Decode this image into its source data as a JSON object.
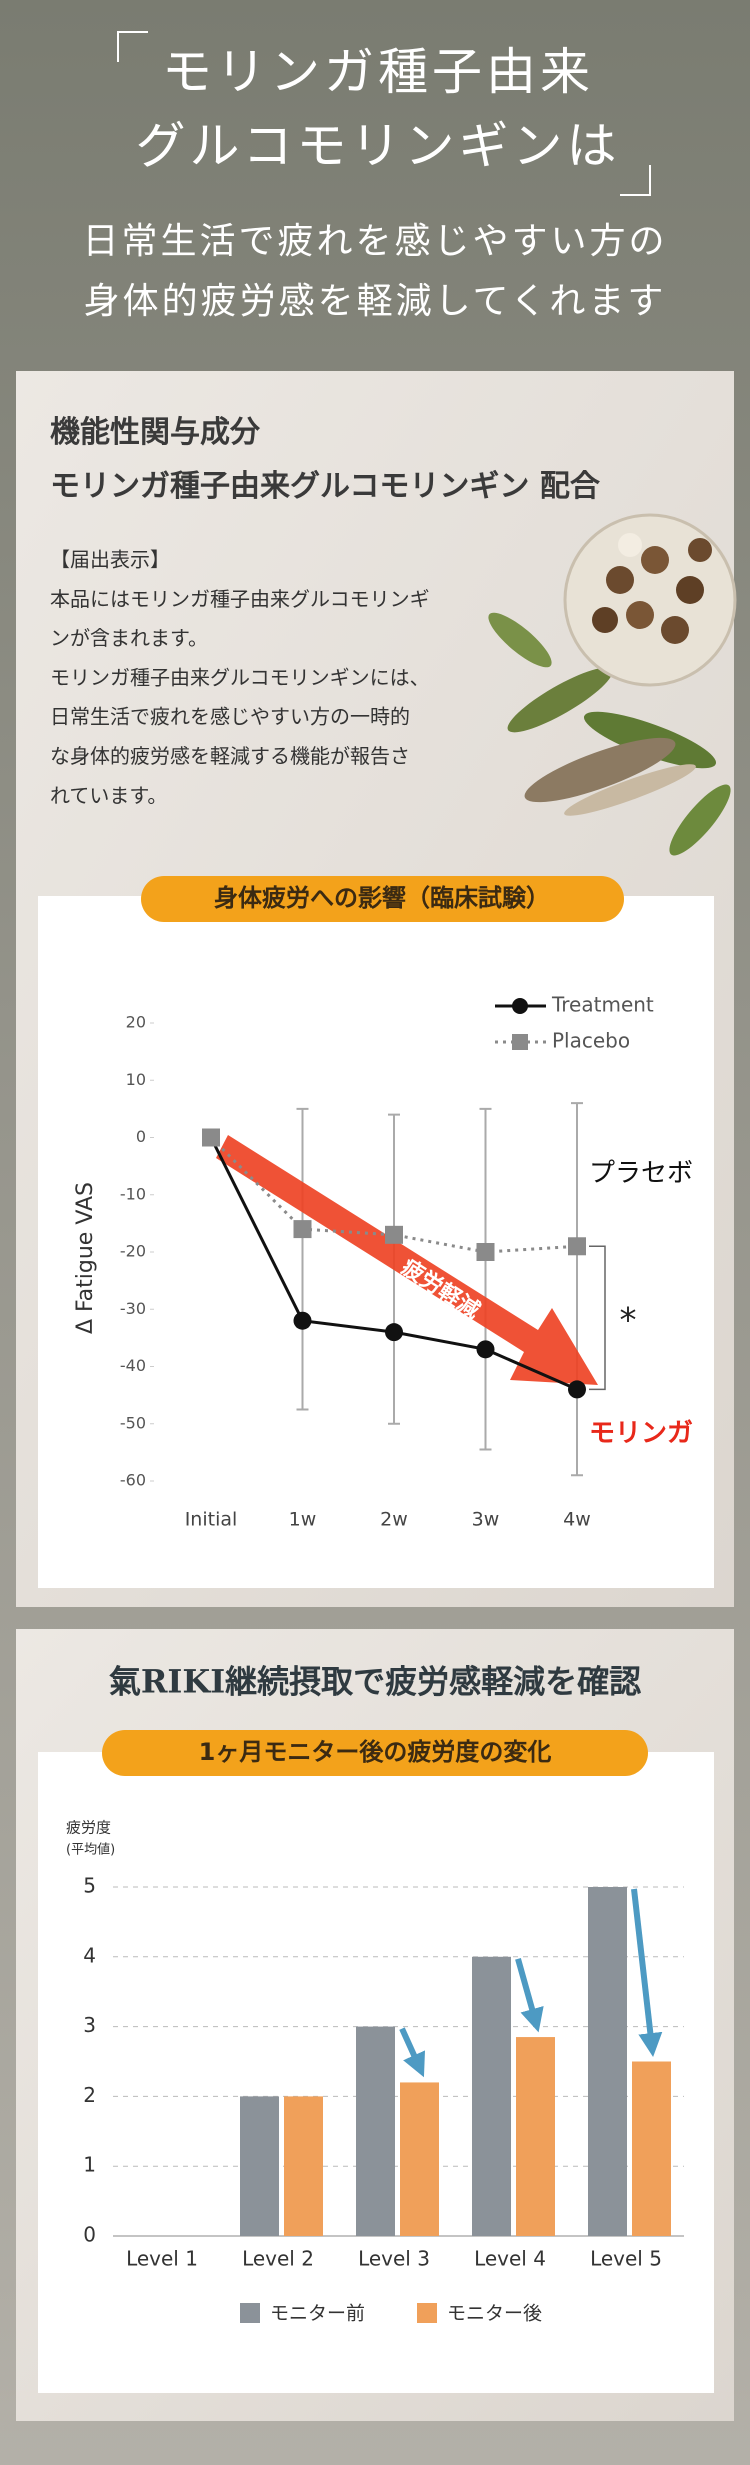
{
  "header": {
    "title_lines": [
      "モリンガ種子由来",
      "グルコモリンギンは"
    ],
    "subtitle_lines": [
      "日常生活で疲れを感じやすい方の",
      "身体的疲労感を軽減してくれます"
    ]
  },
  "ingredient": {
    "heading_lines": [
      "機能性関与成分",
      "モリンガ種子由来グルコモリンギン 配合"
    ],
    "notice_lines": [
      "【届出表示】",
      "本品にはモリンガ種子由来グルコモリンギ",
      "ンが含まれます。",
      "モリンガ種子由来グルコモリンギンには、",
      "日常生活で疲れを感じやすい方の一時的",
      "な身体的疲労感を軽減する機能が報告さ",
      "れています。"
    ]
  },
  "section2": {
    "title": "氣RIKI継続摂取で疲労感軽減を確認"
  },
  "chart_data": [
    {
      "type": "line",
      "title": "身体疲労への影響（臨床試験）",
      "y_label": "Δ Fatigue VAS",
      "categories": [
        "Initial",
        "1w",
        "2w",
        "3w",
        "4w"
      ],
      "ylim": [
        -60,
        20
      ],
      "yticks": [
        20,
        10,
        0,
        -10,
        -20,
        -30,
        -40,
        -50,
        -60
      ],
      "series": [
        {
          "name": "Treatment",
          "color": "#111111",
          "marker": "circle",
          "values": [
            0,
            -32,
            -34,
            -37,
            -44
          ],
          "error_low": [
            null,
            -47.5,
            -50,
            -54.5,
            -59
          ],
          "error_high": [
            null,
            5,
            4,
            5,
            6
          ]
        },
        {
          "name": "Placebo",
          "color": "#8a8a8a",
          "marker": "square",
          "values": [
            0,
            -16,
            -17,
            -20,
            -19
          ]
        }
      ],
      "annotations": {
        "placebo_label": "プラセボ",
        "moringa_label": "モリンガ",
        "significance": "*",
        "arrow_label": "疲労軽減"
      }
    },
    {
      "type": "bar",
      "title": "1ヶ月モニター後の疲労度の変化",
      "y_label_lines": [
        "疲労度",
        "(平均値)"
      ],
      "categories": [
        "Level 1",
        "Level 2",
        "Level 3",
        "Level 4",
        "Level 5"
      ],
      "ylim": [
        0,
        5
      ],
      "yticks": [
        0,
        1,
        2,
        3,
        4,
        5
      ],
      "grid": true,
      "series": [
        {
          "name": "モニター前",
          "color": "#8b9299",
          "values": [
            null,
            2,
            3,
            4,
            5
          ]
        },
        {
          "name": "モニター後",
          "color": "#f0a05a",
          "values": [
            null,
            2,
            2.2,
            2.85,
            2.5
          ]
        }
      ]
    }
  ]
}
